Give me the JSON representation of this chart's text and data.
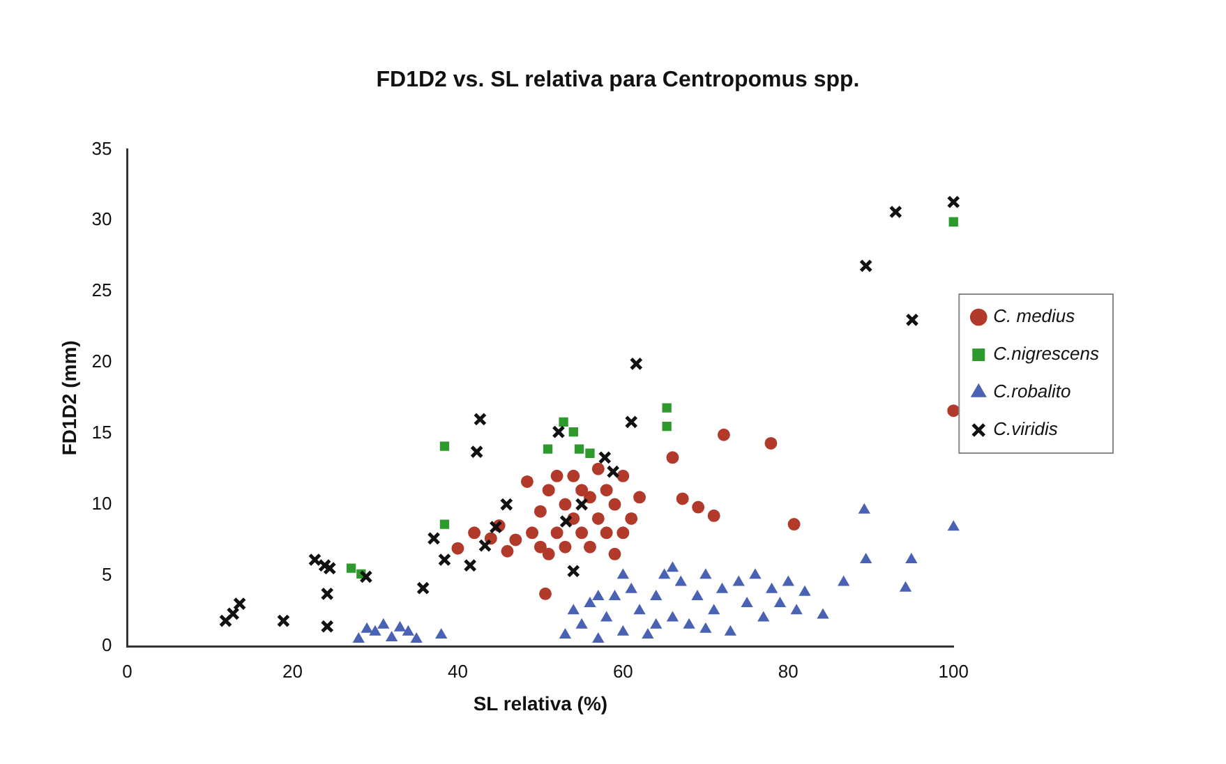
{
  "chart_data": {
    "type": "scatter",
    "title": "FD1D2 vs. SL relativa para Centropomus spp.",
    "xlabel": "SL relativa (%)",
    "ylabel": "FD1D2 (mm)",
    "xlim": [
      0,
      100
    ],
    "xticks": [
      0,
      20,
      40,
      60,
      80,
      100
    ],
    "ylim": [
      0,
      35
    ],
    "yticks": [
      0,
      5,
      10,
      15,
      20,
      25,
      30,
      35
    ],
    "grid": false,
    "legend": "right",
    "series": [
      {
        "name": "C. medius",
        "color": "#b23a2a",
        "marker": "circle",
        "x": [
          40,
          42,
          44,
          45,
          46,
          47,
          48.4,
          49,
          50,
          50,
          51,
          51,
          52,
          52,
          53,
          53,
          54,
          54,
          55,
          55,
          56,
          56,
          57,
          57,
          58,
          58,
          59,
          59,
          60,
          60,
          61,
          62,
          50.6,
          66,
          67.2,
          69.1,
          71,
          72.2,
          77.9,
          80.7,
          100
        ],
        "values": [
          6.9,
          8,
          7.6,
          8.5,
          6.7,
          7.5,
          11.6,
          8,
          9.5,
          7,
          6.5,
          11,
          12,
          8,
          10,
          7,
          12,
          9,
          11,
          8,
          10.5,
          7,
          12.5,
          9,
          11,
          8,
          6.5,
          10,
          12,
          8,
          9,
          10.5,
          3.7,
          13.3,
          10.4,
          9.8,
          9.2,
          14.9,
          14.3,
          8.6,
          16.6
        ]
      },
      {
        "name": "C.nigrescens",
        "color": "#2e9a2e",
        "marker": "square",
        "x": [
          27.1,
          28.3,
          38.4,
          38.4,
          50.9,
          52.8,
          54,
          54.7,
          56,
          65.3,
          65.3,
          100
        ],
        "values": [
          5.5,
          5.1,
          8.6,
          14.1,
          13.9,
          15.8,
          15.1,
          13.9,
          13.6,
          16.8,
          15.5,
          29.9
        ]
      },
      {
        "name": "C.robalito",
        "color": "#4a62b4",
        "marker": "triangle",
        "x": [
          28,
          29,
          30,
          31,
          32,
          33,
          34,
          35,
          38,
          53,
          54,
          55,
          56,
          57,
          57,
          58,
          59,
          60,
          60,
          61,
          62,
          63,
          64,
          64,
          65,
          66,
          66,
          67,
          68,
          69,
          70,
          70,
          71,
          72,
          73,
          74,
          75,
          76,
          77,
          78,
          79,
          80,
          81,
          82,
          84.2,
          86.7,
          89.2,
          89.4,
          94.2,
          94.9,
          100
        ],
        "values": [
          0.5,
          1.2,
          1,
          1.5,
          0.6,
          1.3,
          1,
          0.5,
          0.8,
          0.8,
          2.5,
          1.5,
          3,
          0.5,
          3.5,
          2,
          3.5,
          1,
          5,
          4,
          2.5,
          0.8,
          3.5,
          1.5,
          5,
          2,
          5.5,
          4.5,
          1.5,
          3.5,
          5,
          1.2,
          2.5,
          4,
          1,
          4.5,
          3,
          5,
          2,
          4,
          3,
          4.5,
          2.5,
          3.8,
          2.2,
          4.5,
          9.6,
          6.1,
          4.1,
          6.1,
          8.4
        ]
      },
      {
        "name": "C.viridis",
        "color": "#111111",
        "marker": "cross",
        "x": [
          11.9,
          12.8,
          13.6,
          18.9,
          22.7,
          23.9,
          24.2,
          24.2,
          24.5,
          28.9,
          35.8,
          37.1,
          38.4,
          41.5,
          42.3,
          42.7,
          43.3,
          44.6,
          45.9,
          52.2,
          53.1,
          54,
          55,
          57.8,
          58.8,
          61,
          61.6,
          89.4,
          93,
          95,
          100
        ],
        "values": [
          1.8,
          2.3,
          3,
          1.8,
          6.1,
          5.7,
          3.7,
          1.4,
          5.5,
          4.9,
          4.1,
          7.6,
          6.1,
          5.7,
          13.7,
          16,
          7.1,
          8.4,
          10,
          15.1,
          8.8,
          5.3,
          10,
          13.3,
          12.3,
          15.8,
          19.9,
          26.8,
          30.6,
          23,
          31.3
        ]
      }
    ]
  }
}
